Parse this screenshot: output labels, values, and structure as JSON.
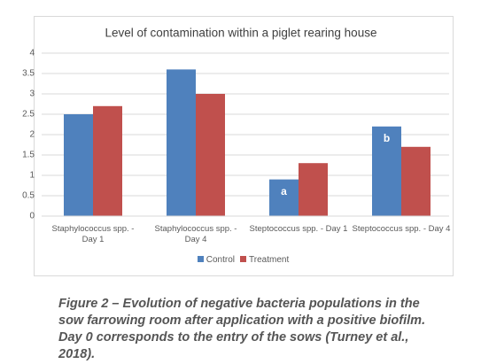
{
  "chart_data": {
    "type": "bar",
    "title": "Level of contamination within a piglet rearing house",
    "categories": [
      "Staphylococcus spp. - Day 1",
      "Staphylococcus spp. - Day 4",
      "Steptococcus spp. - Day 1",
      "Steptococcus spp. - Day 4"
    ],
    "series": [
      {
        "name": "Control",
        "color": "#4f81bd",
        "values": [
          2.5,
          3.6,
          0.9,
          2.2
        ],
        "annotations": [
          null,
          null,
          "a",
          "b"
        ]
      },
      {
        "name": "Treatment",
        "color": "#c0504d",
        "values": [
          2.7,
          3.0,
          1.3,
          1.7
        ]
      }
    ],
    "ylim": [
      0,
      4
    ],
    "yticks": [
      0,
      0.5,
      1,
      1.5,
      2,
      2.5,
      3,
      3.5,
      4
    ],
    "grid": true,
    "legend": "bottom"
  },
  "figure_caption": {
    "label": "Figure 2 –",
    "text": "Evolution of negative bacteria populations in the sow farrowing room after application with a positive biofilm. Day 0 corresponds to the entry of the sows (Turney et al., 2018)."
  }
}
